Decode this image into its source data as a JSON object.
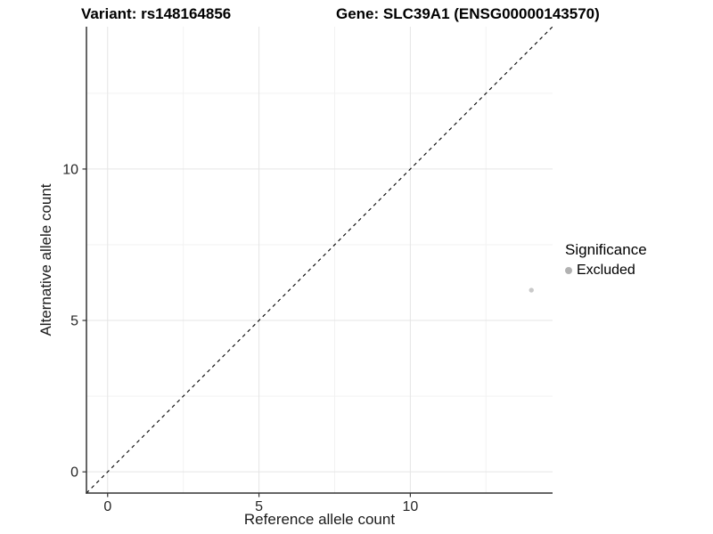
{
  "chart_data": {
    "type": "scatter",
    "title_left": "Variant: rs148164856",
    "title_right": "Gene: SLC39A1 (ENSG00000143570)",
    "xlabel": "Reference allele count",
    "ylabel": "Alternative allele count",
    "xlim": [
      -0.7,
      14.7
    ],
    "ylim": [
      -0.7,
      14.7
    ],
    "x_major_ticks": [
      0,
      5,
      10
    ],
    "y_major_ticks": [
      0,
      5,
      10
    ],
    "x_minor_ticks": [
      2.5,
      7.5,
      12.5
    ],
    "y_minor_ticks": [
      2.5,
      7.5,
      12.5
    ],
    "grid": "major+minor",
    "reference_line": {
      "type": "identity",
      "style": "dashed",
      "color": "#000000"
    },
    "series": [
      {
        "name": "Excluded",
        "color": "#c9c9c9",
        "point_radius": 2.7,
        "points": [
          {
            "x": 14,
            "y": 6
          }
        ]
      }
    ],
    "legend": {
      "title": "Significance",
      "position": "right",
      "items": [
        {
          "label": "Excluded",
          "color": "#b2b2b2"
        }
      ]
    }
  },
  "colors": {
    "background": "#ffffff",
    "grid_major": "#e5e5e5",
    "grid_minor": "#f2f2f2",
    "axis_line": "#333333",
    "tick_mark": "#333333",
    "tick_label": "#262626"
  }
}
